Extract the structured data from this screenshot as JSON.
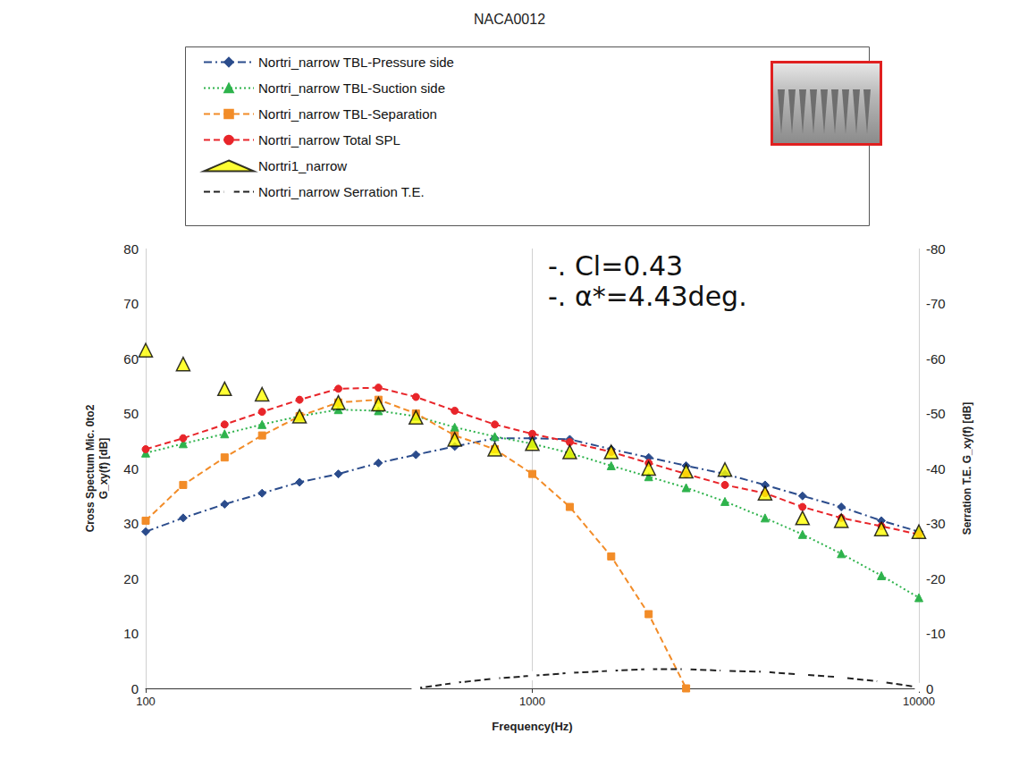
{
  "chart_data": {
    "type": "line",
    "title": "NACA0012",
    "x_label": "Frequency(Hz)",
    "y_label": "Cross Spectum Mic. 0to2\nG_xy(f) [dB]",
    "y2_label": "Serration T.E. G_xy(f) [dB]",
    "annotations": [
      "-. Cl=0.43",
      "-. α*=4.43deg."
    ],
    "log": "x",
    "grid": "x",
    "legend": "top",
    "x": [
      100,
      125,
      160,
      200,
      250,
      315,
      400,
      500,
      630,
      800,
      1000,
      1250,
      1600,
      2000,
      2500,
      3150,
      4000,
      5000,
      6300,
      8000,
      10000
    ],
    "xlim": [
      100,
      10000
    ],
    "xticks": [
      100,
      1000,
      10000
    ],
    "ylim": [
      0,
      80
    ],
    "yticks": [
      0,
      10,
      20,
      30,
      40,
      50,
      60,
      70,
      80
    ],
    "y2lim": [
      0,
      -80
    ],
    "y2ticks": [
      0,
      -10,
      -20,
      -30,
      -40,
      -50,
      -60,
      -70,
      -80
    ],
    "series": [
      {
        "name": "Nortri_narrow TBL-Pressure side",
        "type": "line",
        "color": "#2b4c8c",
        "marker": "diamond",
        "line_style": "dashdot",
        "values": [
          28.5,
          31,
          33.5,
          35.5,
          37.5,
          39,
          41,
          42.5,
          44,
          45.5,
          45.5,
          45.3,
          43.5,
          42,
          40.5,
          39,
          37,
          35,
          33,
          30.5,
          28.5
        ]
      },
      {
        "name": "Nortri_narrow TBL-Suction side",
        "type": "line",
        "color": "#2eb34c",
        "marker": "triangle",
        "line_style": "dotted",
        "values": [
          42.8,
          44.5,
          46.3,
          48,
          49.5,
          50.7,
          50.5,
          49.5,
          47.5,
          45.8,
          44.5,
          42.8,
          40.5,
          38.5,
          36.5,
          34,
          31,
          28,
          24.5,
          20.5,
          16.5
        ]
      },
      {
        "name": "Nortri_narrow TBL-Separation",
        "type": "line",
        "color": "#f28c28",
        "marker": "square",
        "line_style": "dashed",
        "values": [
          30.5,
          37,
          42,
          46,
          49.5,
          52,
          52.5,
          50,
          46,
          43.5,
          39,
          33,
          24,
          13.5,
          0,
          null,
          null,
          null,
          null,
          null,
          null
        ]
      },
      {
        "name": "Nortri_narrow Total SPL",
        "type": "line",
        "color": "#e8252a",
        "marker": "circle",
        "line_style": "dashed",
        "values": [
          43.5,
          45.5,
          48,
          50.3,
          52.5,
          54.5,
          54.7,
          53,
          50.5,
          48,
          46.3,
          44.8,
          43,
          41,
          39,
          37,
          35.5,
          33,
          31,
          29.5,
          28
        ]
      },
      {
        "name": "Nortri1_narrow",
        "type": "scatter",
        "color": "#ffff00",
        "marker": "triangle",
        "values": [
          61.5,
          59,
          54.5,
          53.5,
          49.5,
          52,
          51.7,
          49.3,
          45.3,
          43.5,
          44.5,
          43,
          43,
          40,
          39.5,
          39.8,
          35.5,
          31,
          30.5,
          29,
          28.5
        ]
      },
      {
        "name": "Nortri_narrow Serration T.E.",
        "type": "line",
        "axis": "y2",
        "color": "#222222",
        "marker": "open_circle",
        "line_style": "dashed",
        "values": [
          null,
          null,
          null,
          null,
          null,
          null,
          null,
          0,
          -1,
          -1.8,
          -2.3,
          -2.8,
          -3.2,
          -3.5,
          -3.5,
          -3.2,
          -3,
          -2.5,
          -2,
          -1.2,
          -0.2
        ]
      }
    ]
  }
}
